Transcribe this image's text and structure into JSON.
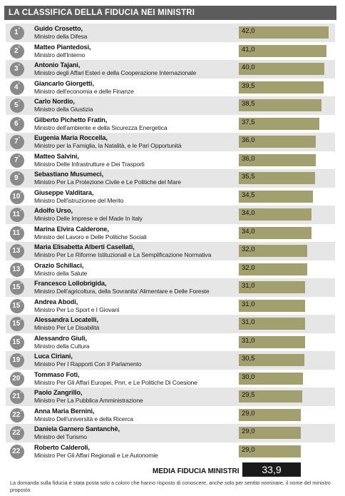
{
  "title": "LA CLASSIFICA DELLA FIDUCIA NEI MINISTRI",
  "chart_data": {
    "type": "bar",
    "orientation": "horizontal",
    "colors": {
      "bar": "#a3a070",
      "rank_badge": "#8a8a8a",
      "header": "#5c5c5c"
    },
    "rows": [
      {
        "rank": "1",
        "name": "Guido Crosetto",
        "role": "Ministro della Difesa",
        "value": 42.0,
        "label": "42,0"
      },
      {
        "rank": "2",
        "name": "Matteo Piantedosi",
        "role": "Ministro dell'Interno",
        "value": 41.0,
        "label": "41,0"
      },
      {
        "rank": "3",
        "name": "Antonio Tajani",
        "role": "Ministro degli Affari Esteri e della Cooperazione Internazionale",
        "value": 40.0,
        "label": "40,0"
      },
      {
        "rank": "4",
        "name": "Giancarlo Giorgetti",
        "role": "Ministro dell'economia e delle Finanze",
        "value": 39.5,
        "label": "39,5"
      },
      {
        "rank": "5",
        "name": "Carlo Nordio",
        "role": "Ministro della Giustizia",
        "value": 38.5,
        "label": "38,5"
      },
      {
        "rank": "6",
        "name": "Gilberto Pichetto Fratin",
        "role": "Ministro dell'ambiente e della Sicurezza Energetica",
        "value": 37.5,
        "label": "37,5"
      },
      {
        "rank": "7",
        "name": "Eugenia Maria Roccella",
        "role": "Ministro per la Famiglia, la Natalità, e le Pari Opportunità",
        "value": 36.0,
        "label": "36,0"
      },
      {
        "rank": "7",
        "name": "Matteo Salvini",
        "role": "Ministro Delle Infrastrutture e Dei Trasporti",
        "value": 36.0,
        "label": "36,0"
      },
      {
        "rank": "9",
        "name": "Sebastiano Musumeci",
        "role": "Ministro Per La Protezione Civile e Le Politiche del Mare",
        "value": 35.5,
        "label": "35,5"
      },
      {
        "rank": "10",
        "name": "Giuseppe Valditara",
        "role": "Ministro Dell'istruzionee del Merito",
        "value": 34.5,
        "label": "34,5"
      },
      {
        "rank": "11",
        "name": "Adolfo Urso",
        "role": "Ministro Delle Imprese e del Made In Italy",
        "value": 34.0,
        "label": "34,0"
      },
      {
        "rank": "11",
        "name": "Marina Elvira Calderone",
        "role": "Ministro del Lavoro e Delle Politiche Sociali",
        "value": 34.0,
        "label": "34,0"
      },
      {
        "rank": "13",
        "name": "Maria Elisabetta Alberti Casellati",
        "role": "Ministro Per Le Riforme Istituzionali e La Semplificazione Normativa",
        "value": 32.0,
        "label": "32,0"
      },
      {
        "rank": "13",
        "name": "Orazio Schillaci",
        "role": "Ministro della Salute",
        "value": 32.0,
        "label": "32,0"
      },
      {
        "rank": "15",
        "name": "Francesco Lollobrigida",
        "role": "Ministro Dell'agricoltura, della Sovranita' Alimentare e Delle Foreste",
        "value": 31.0,
        "label": "31,0"
      },
      {
        "rank": "15",
        "name": "Andrea Abodi",
        "role": "Ministro Per Lo Sport e I Giovani",
        "value": 31.0,
        "label": "31,0"
      },
      {
        "rank": "15",
        "name": "Alessandra Locatelli",
        "role": "Ministro Per Le Disabilità",
        "value": 31.0,
        "label": "31,0"
      },
      {
        "rank": "15",
        "name": "Alessandro Giuli",
        "role": "Ministro della Cultura",
        "value": 31.0,
        "label": "31,0"
      },
      {
        "rank": "19",
        "name": "Luca Ciriani",
        "role": "Ministro Per I Rapporti Con Il Parlamento",
        "value": 30.5,
        "label": "30,5"
      },
      {
        "rank": "20",
        "name": "Tommaso Foti",
        "role": "Ministro Per Gli Affari Europei, Pnrr, e Le Politiche Di Coesione",
        "value": 30.0,
        "label": "30,0"
      },
      {
        "rank": "21",
        "name": "Paolo Zangrillo",
        "role": "Ministro Per La Pubblica Amministrazione",
        "value": 29.5,
        "label": "29,5"
      },
      {
        "rank": "22",
        "name": "Anna Maria Bernini",
        "role": "Ministro Dell'università e della Ricerca",
        "value": 29.0,
        "label": "29,0"
      },
      {
        "rank": "22",
        "name": "Daniela Garnero Santanchè",
        "role": "Ministro del Turismo",
        "value": 29.0,
        "label": "29,0"
      },
      {
        "rank": "22",
        "name": "Roberto Calderoli",
        "role": "Ministro Per Gli Affari Regionali e Le Autonomie",
        "value": 29.0,
        "label": "29,0"
      }
    ],
    "mean_label": "MEDIA FIDUCIA MINISTRI",
    "mean_value": "33,9"
  },
  "footnote": "La domanda sulla fiducia è stata posta solo a coloro che hanno risposto di conoscere, anche solo per sentito nominare, il nome del ministro proposto"
}
